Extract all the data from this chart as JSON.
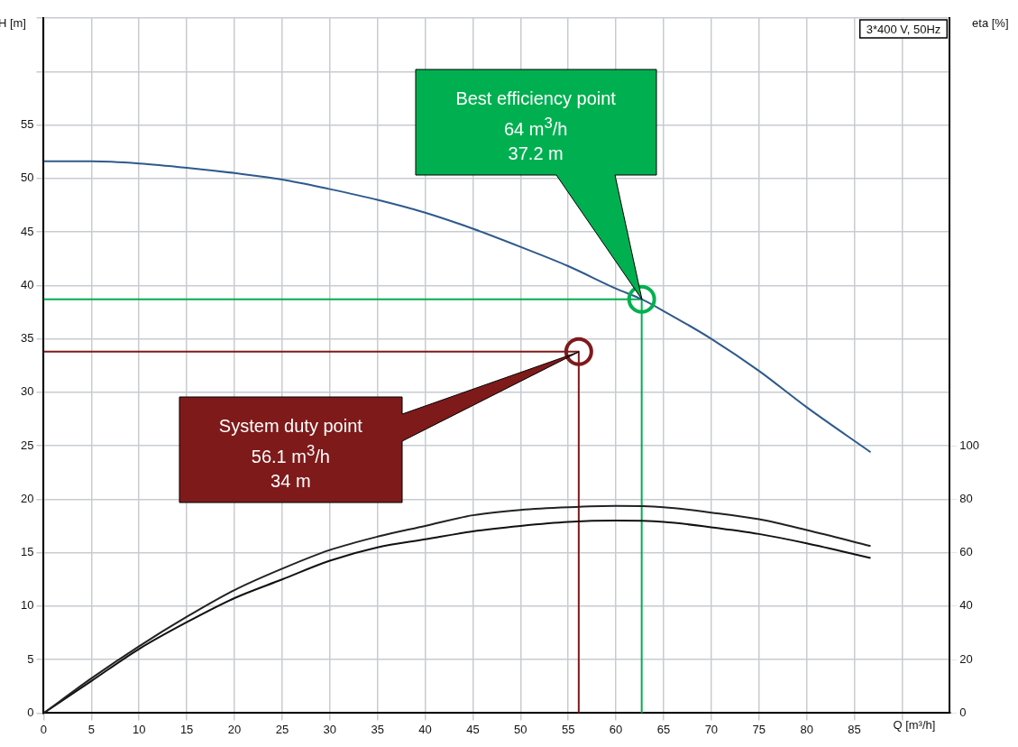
{
  "chart_data": {
    "type": "line",
    "xlabel": "Q [m³/h]",
    "ylabel": "H [m]",
    "y2label": "eta [%]",
    "xlim": [
      0,
      95
    ],
    "xticks": [
      0,
      5,
      10,
      15,
      20,
      25,
      30,
      35,
      40,
      45,
      50,
      55,
      60,
      65,
      70,
      75,
      80,
      85,
      {
        "value": 90,
        "label": null
      }
    ],
    "ylim": [
      0,
      65
    ],
    "yticks": [
      0,
      5,
      10,
      15,
      20,
      25,
      30,
      35,
      40,
      45,
      50,
      55,
      {
        "value": 60,
        "label": null
      },
      {
        "value": 65,
        "label": null
      }
    ],
    "y2lim": [
      0,
      260
    ],
    "y2ticks": [
      0,
      20,
      40,
      60,
      80,
      100
    ],
    "grid": true,
    "legend": false,
    "marker": "none",
    "series": [
      {
        "color": "#2e5a8c",
        "x": [
          0,
          5,
          10,
          15,
          20,
          25,
          30,
          35,
          40,
          45,
          50,
          55,
          60,
          62.7,
          65,
          70,
          75,
          80,
          86.7
        ],
        "values": [
          51.6,
          51.6,
          51.4,
          51.0,
          50.5,
          49.9,
          49.0,
          48.0,
          46.8,
          45.3,
          43.6,
          41.8,
          39.7,
          38.7,
          37.6,
          35.0,
          32.0,
          28.6,
          24.4
        ]
      },
      {
        "axis": "y2",
        "color": "#222222",
        "x": [
          0,
          5,
          10,
          15,
          20,
          25,
          30,
          35,
          40,
          45,
          50,
          55,
          60,
          65,
          70,
          75,
          80,
          86.7
        ],
        "values": [
          0,
          13,
          25,
          36,
          46,
          54,
          61,
          66,
          70,
          74,
          76,
          77,
          77.5,
          77,
          75,
          72.5,
          68.5,
          62.5
        ]
      },
      {
        "axis": "y2",
        "color": "#111111",
        "x": [
          0,
          5,
          10,
          15,
          20,
          25,
          30,
          35,
          40,
          45,
          50,
          55,
          60,
          65,
          70,
          75,
          80,
          86.7
        ],
        "values": [
          0,
          12,
          24,
          34,
          43,
          50,
          57,
          62,
          65,
          68,
          70,
          71.5,
          72,
          71.5,
          69.5,
          67,
          63.5,
          58
        ]
      },
      {
        "color": "#00b050",
        "x": [
          0,
          62.7,
          62.7
        ],
        "values": [
          38.7,
          38.7,
          0
        ]
      },
      {
        "color": "#7f1a1a",
        "x": [
          0,
          56.1,
          56.1
        ],
        "values": [
          33.8,
          33.8,
          0
        ]
      },
      {
        "type": "scatter",
        "marker": "circle",
        "color": "#00b050",
        "x": [
          62.7
        ],
        "values": [
          38.7
        ]
      },
      {
        "type": "scatter",
        "marker": "circle",
        "color": "#7f1a1a",
        "x": [
          56.1
        ],
        "values": [
          33.8
        ]
      }
    ],
    "annotations": [
      "3*400 V, 50Hz",
      "Best efficiency point\n64 m$^{3}$/h\n37.2 m",
      "System duty point\n56.1 m$^{3}$/h\n34 m"
    ]
  }
}
